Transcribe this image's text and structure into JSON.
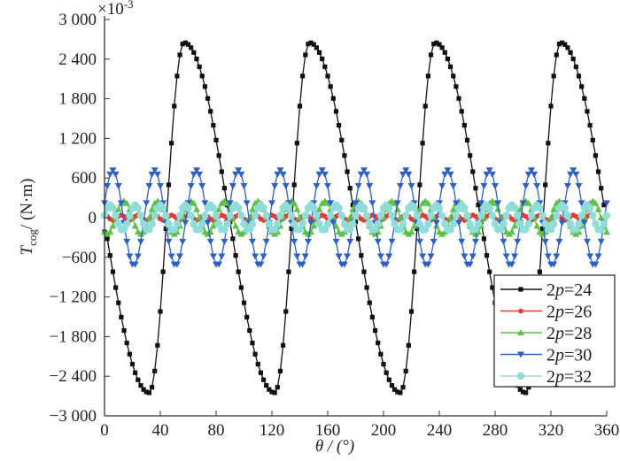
{
  "chart_data": {
    "type": "line",
    "title": "",
    "xlabel": "θ / (°)",
    "ylabel_main": "T",
    "ylabel_sub": "cog",
    "ylabel_unit": "/ (N·m)",
    "y_multiplier": "×10",
    "y_multiplier_exp": "-3",
    "xlim": [
      0,
      360
    ],
    "ylim": [
      -3000,
      3000
    ],
    "xticks": [
      0,
      40,
      80,
      120,
      160,
      200,
      240,
      280,
      320,
      360
    ],
    "yticks": [
      3000,
      2400,
      1800,
      1200,
      600,
      0,
      -600,
      -1200,
      -1800,
      -2400,
      -3000
    ],
    "ytick_labels": [
      "3 000",
      "2 400",
      "1 800",
      "1 200",
      "600",
      "0",
      "−600",
      "−1 200",
      "−1 800",
      "−2 400",
      "−3 000"
    ],
    "legend_position": "bottom-right",
    "x_start": 0,
    "x_step": 2,
    "series": [
      {
        "name": "2p=24",
        "label_pre": "2",
        "label_var": "p",
        "label_post": "=24",
        "color": "#111111",
        "marker": "square",
        "values": [
          -215,
          -319,
          -572,
          -819,
          -1058,
          -1288,
          -1505,
          -1708,
          -1896,
          -2066,
          -2217,
          -2347,
          -2454,
          -2539,
          -2601,
          -2638,
          -2650,
          -2567,
          -2322,
          -1932,
          -1420,
          -819,
          -166,
          497,
          1128,
          1689,
          2144,
          2464,
          2629,
          2647,
          2622,
          2573,
          2500,
          2403,
          2284,
          2144,
          1984,
          1805,
          1609,
          1398,
          1174,
          940,
          696,
          446,
          192,
          -64,
          -319,
          -572,
          -819,
          -1058,
          -1288,
          -1505,
          -1708,
          -1896,
          -2066,
          -2217,
          -2347,
          -2454,
          -2539,
          -2601,
          -2638,
          -2650,
          -2567,
          -2322,
          -1932,
          -1420,
          -819,
          -166,
          497,
          1128,
          1689,
          2144,
          2464,
          2629,
          2647,
          2622,
          2573,
          2500,
          2403,
          2284,
          2144,
          1984,
          1805,
          1609,
          1398,
          1174,
          940,
          696,
          446,
          192,
          -64,
          -319,
          -572,
          -819,
          -1058,
          -1288,
          -1505,
          -1708,
          -1896,
          -2066,
          -2217,
          -2347,
          -2454,
          -2539,
          -2601,
          -2638,
          -2650,
          -2567,
          -2322,
          -1932,
          -1420,
          -819,
          -166,
          497,
          1128,
          1689,
          2144,
          2464,
          2629,
          2647,
          2622,
          2573,
          2500,
          2403,
          2284,
          2144,
          1984,
          1805,
          1609,
          1398,
          1174,
          940,
          696,
          446,
          192,
          -64,
          -319,
          -572,
          -819,
          -1058,
          -1288,
          -1505,
          -1708,
          -1896,
          -2066,
          -2217,
          -2347,
          -2454,
          -2539,
          -2601,
          -2638,
          -2650,
          -2567,
          -2322,
          -1932,
          -1420,
          -819,
          -166,
          497,
          1128,
          1689,
          2144,
          2464,
          2629,
          2647,
          2622,
          2573,
          2500,
          2403,
          2284,
          2144,
          1984,
          1805,
          1609,
          1398,
          1174,
          940,
          696,
          446,
          192
        ]
      },
      {
        "name": "2p=26",
        "label_pre": "2",
        "label_var": "p",
        "label_post": "=26",
        "color": "#e03a3a",
        "marker": "circle",
        "values": [
          40,
          20,
          -20,
          -40,
          -20,
          20,
          40,
          20,
          -20,
          -40,
          -20,
          20,
          40,
          20,
          -20,
          -40,
          -20,
          20,
          40,
          20,
          -20,
          -40,
          -20,
          20,
          40,
          20,
          -20,
          -40,
          -20,
          20,
          40,
          20,
          -20,
          -40,
          -20,
          20,
          40,
          20,
          -20,
          -40,
          -20,
          20,
          40,
          20,
          -20,
          -40,
          -20,
          20,
          40,
          20,
          -20,
          -40,
          -20,
          20,
          40,
          20,
          -20,
          -40,
          -20,
          20,
          40,
          20,
          -20,
          -40,
          -20,
          20,
          40,
          20,
          -20,
          -40,
          -20,
          20,
          40,
          20,
          -20,
          -40,
          -20,
          20,
          40,
          20,
          -20,
          -40,
          -20,
          20,
          40,
          20,
          -20,
          -40,
          -20,
          20,
          40,
          20,
          -20,
          -40,
          -20,
          20,
          40,
          20,
          -20,
          -40,
          -20,
          20,
          40,
          20,
          -20,
          -40,
          -20,
          20,
          40,
          20,
          -20,
          -40,
          -20,
          20,
          40,
          20,
          -20,
          -40,
          -20,
          20,
          40,
          20,
          -20,
          -40,
          -20,
          20,
          40,
          20,
          -20,
          -40,
          -20,
          20,
          40,
          20,
          -20,
          -40,
          -20,
          20,
          40,
          20,
          -20,
          -40,
          -20,
          20,
          40,
          20,
          -20,
          -40,
          -20,
          20,
          40,
          20,
          -20,
          -40,
          -20,
          20,
          40,
          20,
          -20,
          -40,
          -20,
          20,
          40,
          20,
          -20,
          -40,
          -20,
          20,
          40,
          20,
          -20,
          -40,
          -20,
          20,
          40
        ]
      },
      {
        "name": "2p=28",
        "label_pre": "2",
        "label_var": "p",
        "label_post": "=28",
        "color": "#5cc04a",
        "marker": "triangle-up",
        "values": [
          -217,
          -250,
          -217,
          -125,
          0,
          125,
          217,
          250,
          217,
          125,
          0,
          -125,
          -217,
          -250,
          -217,
          -125,
          0,
          125,
          217,
          250,
          217,
          125,
          0,
          -125,
          -217,
          -250,
          -217,
          -125,
          0,
          125,
          217,
          250,
          217,
          125,
          0,
          -125,
          -217,
          -250,
          -217,
          -125,
          0,
          125,
          217,
          250,
          217,
          125,
          0,
          -125,
          -217,
          -250,
          -217,
          -125,
          0,
          125,
          217,
          250,
          217,
          125,
          0,
          -125,
          -217,
          -250,
          -217,
          -125,
          0,
          125,
          217,
          250,
          217,
          125,
          0,
          -125,
          -217,
          -250,
          -217,
          -125,
          0,
          125,
          217,
          250,
          217,
          125,
          0,
          -125,
          -217,
          -250,
          -217,
          -125,
          0,
          125,
          217,
          250,
          217,
          125,
          0,
          -125,
          -217,
          -250,
          -217,
          -125,
          0,
          125,
          217,
          250,
          217,
          125,
          0,
          -125,
          -217,
          -250,
          -217,
          -125,
          0,
          125,
          217,
          250,
          217,
          125,
          0,
          -125,
          -217,
          -250,
          -217,
          -125,
          0,
          125,
          217,
          250,
          217,
          125,
          0,
          -125,
          -217,
          -250,
          -217,
          -125,
          0,
          125,
          217,
          250,
          217,
          125,
          0,
          -125,
          -217,
          -250,
          -217,
          -125,
          0,
          125,
          217,
          250,
          217,
          125,
          0,
          -125,
          -217,
          -250,
          -217,
          -125,
          0,
          125,
          217,
          250,
          217,
          125,
          0,
          -125,
          -217,
          -250,
          -217,
          -125,
          0,
          125,
          217,
          250,
          217,
          125,
          0,
          -125,
          -217
        ]
      },
      {
        "name": "2p=30",
        "label_pre": "2",
        "label_var": "p",
        "label_post": "=30",
        "color": "#2f5fc0",
        "marker": "triangle-down",
        "values": [
          222,
          482,
          658,
          720,
          658,
          482,
          222,
          -75,
          -360,
          -583,
          -704,
          -704,
          -583,
          -360,
          -75,
          222,
          482,
          658,
          720,
          658,
          482,
          222,
          -75,
          -360,
          -583,
          -704,
          -704,
          -583,
          -360,
          -75,
          222,
          482,
          658,
          720,
          658,
          482,
          222,
          -75,
          -360,
          -583,
          -704,
          -704,
          -583,
          -360,
          -75,
          222,
          482,
          658,
          720,
          658,
          482,
          222,
          -75,
          -360,
          -583,
          -704,
          -704,
          -583,
          -360,
          -75,
          222,
          482,
          658,
          720,
          658,
          482,
          222,
          -75,
          -360,
          -583,
          -704,
          -704,
          -583,
          -360,
          -75,
          222,
          482,
          658,
          720,
          658,
          482,
          222,
          -75,
          -360,
          -583,
          -704,
          -704,
          -583,
          -360,
          -75,
          222,
          482,
          658,
          720,
          658,
          482,
          222,
          -75,
          -360,
          -583,
          -704,
          -704,
          -583,
          -360,
          -75,
          222,
          482,
          658,
          720,
          658,
          482,
          222,
          -75,
          -360,
          -583,
          -704,
          -704,
          -583,
          -360,
          -75,
          222,
          482,
          658,
          720,
          658,
          482,
          222,
          -75,
          -360,
          -583,
          -704,
          -704,
          -583,
          -360,
          -75,
          222,
          482,
          658,
          720,
          658,
          482,
          222,
          -75,
          -360,
          -583,
          -704,
          -704,
          -583,
          -360,
          -75,
          222,
          482,
          658,
          720,
          658,
          482,
          222,
          -75,
          -360,
          -583,
          -704,
          -704,
          -583,
          -360,
          -75,
          222,
          482,
          658,
          720,
          658,
          482,
          222,
          -75,
          -360,
          -583,
          -704,
          -704,
          -583,
          -360,
          -75,
          222
        ]
      },
      {
        "name": "2p=32",
        "label_pre": "2",
        "label_var": "p",
        "label_post": "=32",
        "color": "#8fdcd8",
        "marker": "circle-large",
        "values": [
          33,
          146,
          190,
          146,
          33,
          -95,
          -179,
          -179,
          -95,
          33,
          146,
          190,
          146,
          33,
          -95,
          -179,
          -179,
          -95,
          33,
          146,
          190,
          146,
          33,
          -95,
          -179,
          -179,
          -95,
          33,
          146,
          190,
          146,
          33,
          -95,
          -179,
          -179,
          -95,
          33,
          146,
          190,
          146,
          33,
          -95,
          -179,
          -179,
          -95,
          33,
          146,
          190,
          146,
          33,
          -95,
          -179,
          -179,
          -95,
          33,
          146,
          190,
          146,
          33,
          -95,
          -179,
          -179,
          -95,
          33,
          146,
          190,
          146,
          33,
          -95,
          -179,
          -179,
          -95,
          33,
          146,
          190,
          146,
          33,
          -95,
          -179,
          -179,
          -95,
          33,
          146,
          190,
          146,
          33,
          -95,
          -179,
          -179,
          -95,
          33,
          146,
          190,
          146,
          33,
          -95,
          -179,
          -179,
          -95,
          33,
          146,
          190,
          146,
          33,
          -95,
          -179,
          -179,
          -95,
          33,
          146,
          190,
          146,
          33,
          -95,
          -179,
          -179,
          -95,
          33,
          146,
          190,
          146,
          33,
          -95,
          -179,
          -179,
          -95,
          33,
          146,
          190,
          146,
          33,
          -95,
          -179,
          -179,
          -95,
          33,
          146,
          190,
          146,
          33,
          -95,
          -179,
          -179,
          -95,
          33,
          146,
          190,
          146,
          33,
          -95,
          -179,
          -179,
          -95,
          33,
          146,
          190,
          146,
          33,
          -95,
          -179,
          -179,
          -95,
          33,
          146,
          190,
          146,
          33,
          -95,
          -179,
          -179,
          -95,
          33,
          146,
          190,
          146,
          33,
          -95,
          -179,
          -179,
          -95,
          33
        ]
      }
    ]
  }
}
